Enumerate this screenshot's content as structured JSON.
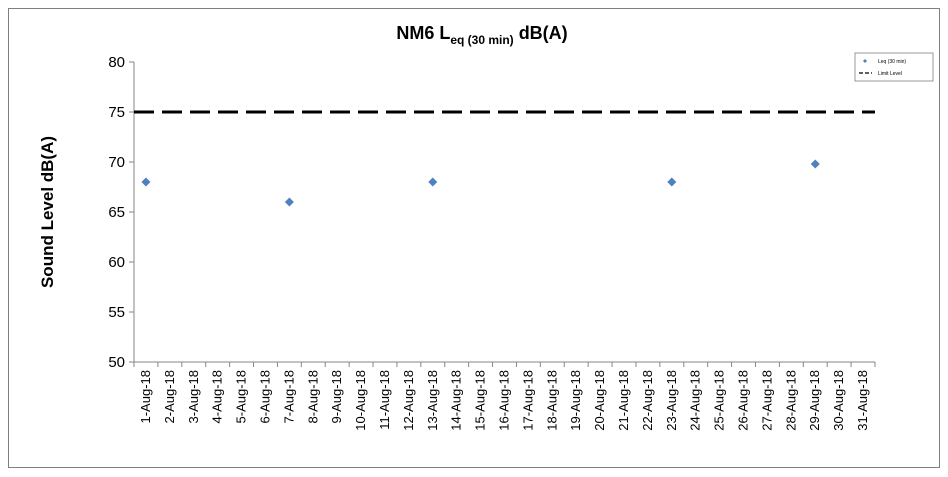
{
  "chart_data": {
    "type": "scatter",
    "title": {
      "main": "NM6 L",
      "subscript": "eq (30 min)",
      "suffix": " dB(A)"
    },
    "xlabel": "",
    "ylabel": "Sound Level dB(A)",
    "ylim": [
      50,
      80
    ],
    "yticks": [
      50,
      55,
      60,
      65,
      70,
      75,
      80
    ],
    "grid": false,
    "legend_position": "top-right",
    "categories": [
      "1-Aug-18",
      "2-Aug-18",
      "3-Aug-18",
      "4-Aug-18",
      "5-Aug-18",
      "6-Aug-18",
      "7-Aug-18",
      "8-Aug-18",
      "9-Aug-18",
      "10-Aug-18",
      "11-Aug-18",
      "12-Aug-18",
      "13-Aug-18",
      "14-Aug-18",
      "15-Aug-18",
      "16-Aug-18",
      "17-Aug-18",
      "18-Aug-18",
      "19-Aug-18",
      "20-Aug-18",
      "21-Aug-18",
      "22-Aug-18",
      "23-Aug-18",
      "24-Aug-18",
      "25-Aug-18",
      "26-Aug-18",
      "27-Aug-18",
      "28-Aug-18",
      "29-Aug-18",
      "30-Aug-18",
      "31-Aug-18"
    ],
    "series": [
      {
        "name": "Leq (30 min)",
        "marker": "diamond",
        "color": "#4f81bd",
        "points": [
          {
            "x": "1-Aug-18",
            "y": 68
          },
          {
            "x": "7-Aug-18",
            "y": 66
          },
          {
            "x": "13-Aug-18",
            "y": 68
          },
          {
            "x": "23-Aug-18",
            "y": 68
          },
          {
            "x": "29-Aug-18",
            "y": 69.8
          }
        ]
      },
      {
        "name": "Limit Level",
        "line_style": "dashed",
        "color": "#000000",
        "y": 75
      }
    ]
  }
}
